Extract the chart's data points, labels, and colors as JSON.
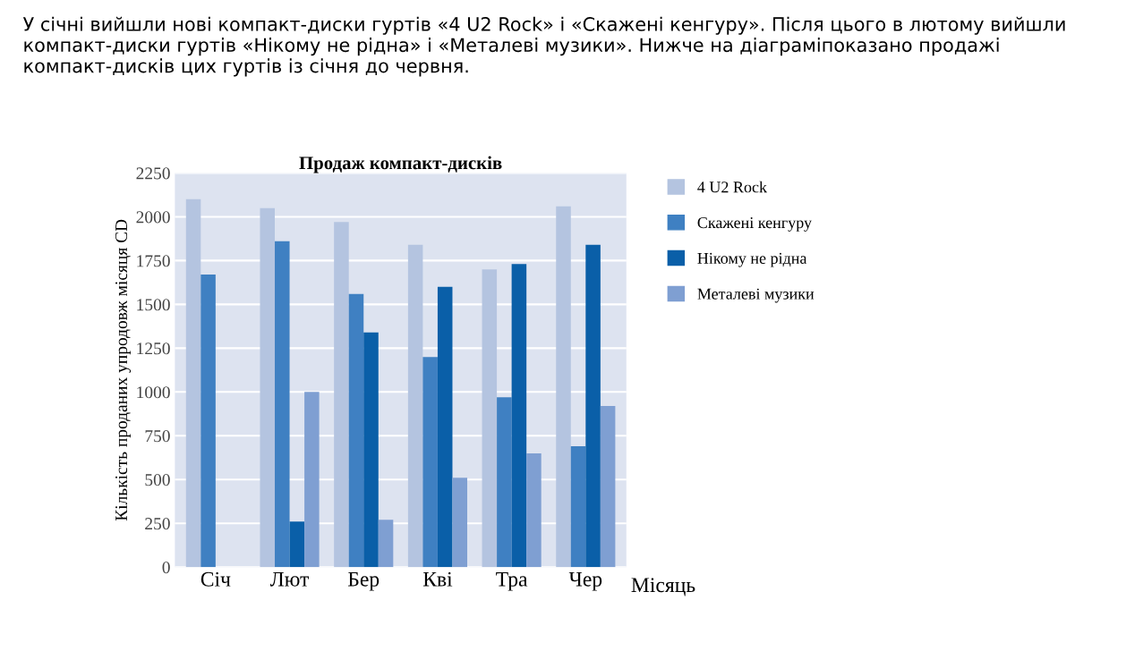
{
  "chart_data": {
    "type": "bar",
    "title": "Продаж компакт-дисків",
    "ylabel": "Кількість проданих упродовж місяця CD",
    "xlabel": "Місяць",
    "annotations": [
      "У січні вийшли нові компакт-диски гуртів «4 U2 Rock» і «Скажені кенгуру». Після цього в лютому вийшли компакт-диски гуртів «Нікому не рідна» і «Металеві музики». Нижче на діаграміпоказано продажі компакт-дисків цих гуртів із січня до червня."
    ],
    "categories": [
      "Січ",
      "Лют",
      "Бер",
      "Кві",
      "Тра",
      "Чер"
    ],
    "series": [
      {
        "name": "4 U2 Rock",
        "color": "#b4c4e0",
        "values": [
          2100,
          2050,
          1970,
          1840,
          1700,
          2060
        ]
      },
      {
        "name": "Скажені кенгуру",
        "color": "#3f80c2",
        "values": [
          1670,
          1860,
          1560,
          1200,
          970,
          690
        ]
      },
      {
        "name": "Нікому не рідна",
        "color": "#0a5fa8",
        "values": [
          null,
          260,
          1340,
          1600,
          1730,
          1840
        ]
      },
      {
        "name": "Металеві музики",
        "color": "#7f9fd2",
        "values": [
          null,
          1000,
          270,
          510,
          650,
          920
        ]
      }
    ],
    "ylim": [
      0,
      2250
    ],
    "yticks": [
      0,
      250,
      500,
      750,
      1000,
      1250,
      1500,
      1750,
      2000,
      2250
    ],
    "grid": "y",
    "legend": "right"
  }
}
